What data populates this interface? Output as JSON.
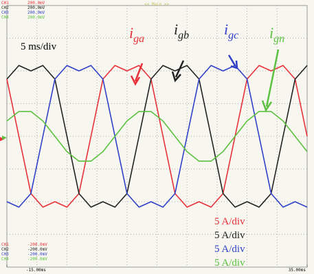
{
  "chart_data": {
    "type": "line",
    "mode": "<< Main >>",
    "timebase": "5 ms/div",
    "channels_top": [
      {
        "name": "CH1",
        "scale": "200.0mV",
        "color": "#e8303a"
      },
      {
        "name": "CH2",
        "scale": "200.0mV",
        "color": "#222222"
      },
      {
        "name": "CH3",
        "scale": "200.0mV",
        "color": "#3040c8"
      },
      {
        "name": "CH4",
        "scale": "200.0mV",
        "color": "#5cc040"
      }
    ],
    "channels_bottom": [
      {
        "name": "CH1",
        "scale": "-200.0mV",
        "color": "#e8303a"
      },
      {
        "name": "CH2",
        "scale": "-200.0mV",
        "color": "#222222"
      },
      {
        "name": "CH3",
        "scale": "-200.0mV",
        "color": "#3040c8"
      },
      {
        "name": "CH4",
        "scale": "-200.0mV",
        "color": "#5cc040"
      }
    ],
    "annotations": [
      {
        "base": "i",
        "sub": "ga",
        "color": "#e8303a"
      },
      {
        "base": "i",
        "sub": "gb",
        "color": "#222222"
      },
      {
        "base": "i",
        "sub": "gc",
        "color": "#3040c8"
      },
      {
        "base": "i",
        "sub": "gn",
        "color": "#5cc040"
      }
    ],
    "xlim": [
      -15,
      35
    ],
    "xticks": [
      {
        "value": -15,
        "label": "-15.00ms"
      },
      {
        "value": 35,
        "label": "35.00ms"
      }
    ],
    "ylim": [
      -20,
      20
    ],
    "x": [
      -15,
      -13,
      -11,
      -9,
      -7,
      -5,
      -3,
      -1,
      1,
      3,
      5,
      7,
      9,
      11,
      13,
      15,
      17,
      19,
      21,
      23,
      25,
      27,
      29,
      31,
      33,
      35
    ],
    "series": [
      {
        "scale_label": "5 A/div",
        "color": "#e8303a",
        "values": [
          8.75,
          0,
          -8.75,
          -10.83,
          -10,
          -10.83,
          -8.75,
          0,
          8.75,
          10.83,
          10,
          10.83,
          8.75,
          0,
          -8.75,
          -10.83,
          -10,
          -10.83,
          -8.75,
          0,
          8.75,
          10.83,
          10,
          10.83,
          8.75,
          0
        ]
      },
      {
        "scale_label": "5 A/div",
        "color": "#222222",
        "values": [
          8.75,
          10.83,
          10,
          10.83,
          8.75,
          0,
          -8.75,
          -10.83,
          -10,
          -10.83,
          -8.75,
          0,
          8.75,
          10.83,
          10,
          10.83,
          8.75,
          0,
          -8.75,
          -10.83,
          -10,
          -10.83,
          -8.75,
          0,
          8.75,
          10.83
        ]
      },
      {
        "scale_label": "5 A/div",
        "color": "#3040c8",
        "values": [
          -10,
          -10.83,
          -8.75,
          0,
          8.75,
          10.83,
          10,
          10.83,
          8.75,
          0,
          -8.75,
          -10.83,
          -10,
          -10.83,
          -8.75,
          0,
          8.75,
          10.83,
          10,
          10.83,
          8.75,
          0,
          -8.75,
          -10.83,
          -10,
          -10.83
        ]
      },
      {
        "scale_label": "5 A/div",
        "color": "#5cc040",
        "values": [
          2.35,
          3.8,
          3.8,
          2.35,
          0,
          -2.35,
          -3.8,
          -3.8,
          -2.35,
          0,
          2.35,
          3.8,
          3.8,
          2.35,
          0,
          -2.35,
          -3.8,
          -3.8,
          -2.35,
          0,
          2.35,
          3.8,
          3.8,
          2.35,
          0,
          -2.35
        ]
      }
    ]
  }
}
